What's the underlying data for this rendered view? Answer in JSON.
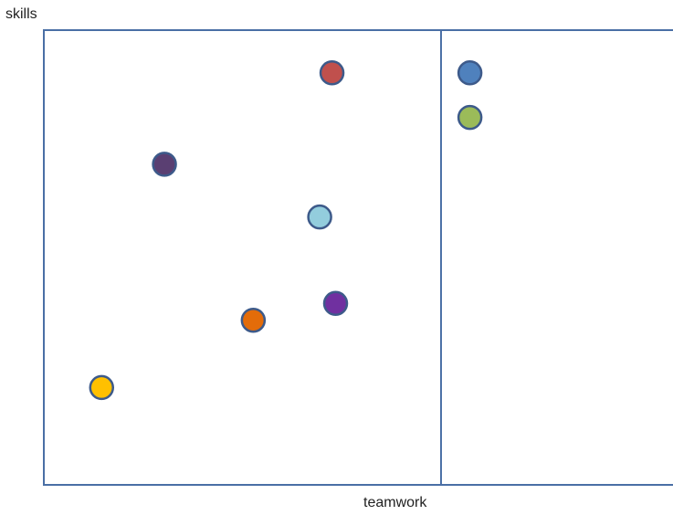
{
  "chart_data": {
    "type": "scatter",
    "xlabel": "teamwork",
    "ylabel": "skills",
    "grid": false,
    "legend": "none",
    "frame_color": "#4a6fa5",
    "marker_stroke": "#3d5a8a",
    "points": [
      {
        "x": 3.19,
        "y": 9.06,
        "color": "#c0504d",
        "color_name": "red"
      },
      {
        "x": 0.87,
        "y": 7.05,
        "color": "#5a3f72",
        "color_name": "dark-purple"
      },
      {
        "x": 3.02,
        "y": 5.89,
        "color": "#93cddd",
        "color_name": "light-blue"
      },
      {
        "x": 3.24,
        "y": 3.99,
        "color": "#7030a0",
        "color_name": "purple"
      },
      {
        "x": 2.1,
        "y": 3.62,
        "color": "#e36c0a",
        "color_name": "orange"
      },
      {
        "x": 0.0,
        "y": 2.14,
        "color": "#ffc000",
        "color_name": "yellow"
      },
      {
        "x": 5.1,
        "y": 9.06,
        "color": "#4f81bd",
        "color_name": "blue"
      },
      {
        "x": 5.1,
        "y": 8.08,
        "color": "#9bbb59",
        "color_name": "green"
      }
    ],
    "divider_x": 4.7,
    "xlim": [
      -0.8,
      7.95
    ],
    "ylim": [
      0,
      10
    ]
  }
}
